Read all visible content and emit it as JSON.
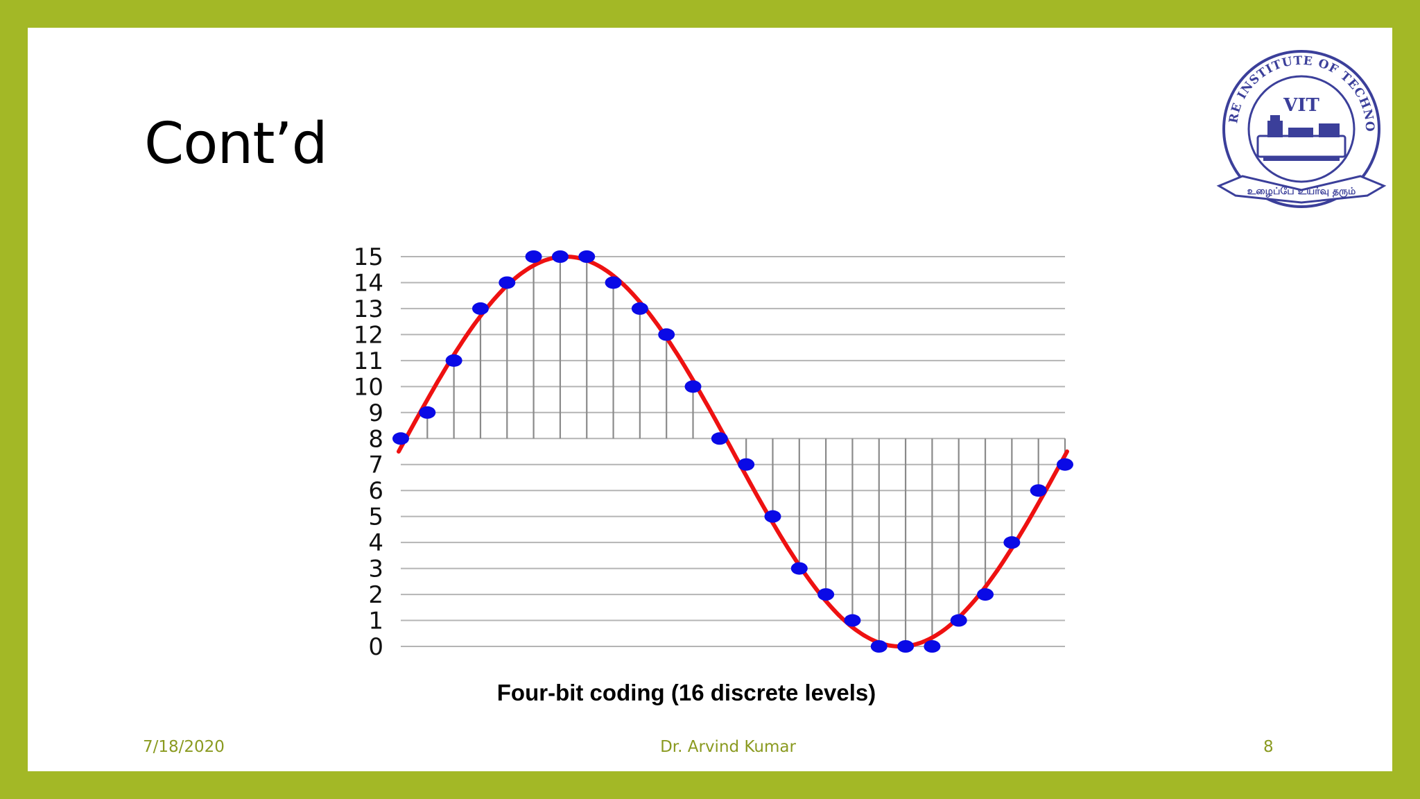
{
  "slide": {
    "title": "Cont’d",
    "caption": "Four-bit coding  (16 discrete levels)",
    "footer": {
      "date": "7/18/2020",
      "author": "Dr. Arvind Kumar",
      "page": "8"
    }
  },
  "logo": {
    "arc_text": "VELLORE INSTITUTE OF TECHNOLOGY",
    "center_text": "VIT",
    "motto": "உழைப்பே உயர்வு தரும்",
    "color": "#3b3f9a"
  },
  "chart_data": {
    "type": "scatter",
    "title": "",
    "xlabel": "",
    "ylabel": "",
    "ylim": [
      0,
      15
    ],
    "yticks": [
      15,
      14,
      13,
      12,
      11,
      10,
      9,
      8,
      7,
      6,
      5,
      4,
      3,
      2,
      1,
      0
    ],
    "grid": true,
    "baseline": 8,
    "series": [
      {
        "values": [
          8,
          9,
          11,
          13,
          14,
          15,
          15,
          15,
          14,
          13,
          12,
          10,
          8,
          7,
          5,
          3,
          2,
          1,
          0,
          0,
          0,
          1,
          2,
          4,
          6,
          7
        ],
        "color": "#0a0ae6"
      }
    ],
    "curve": {
      "shape": "sine",
      "color": "#ee1111"
    }
  }
}
